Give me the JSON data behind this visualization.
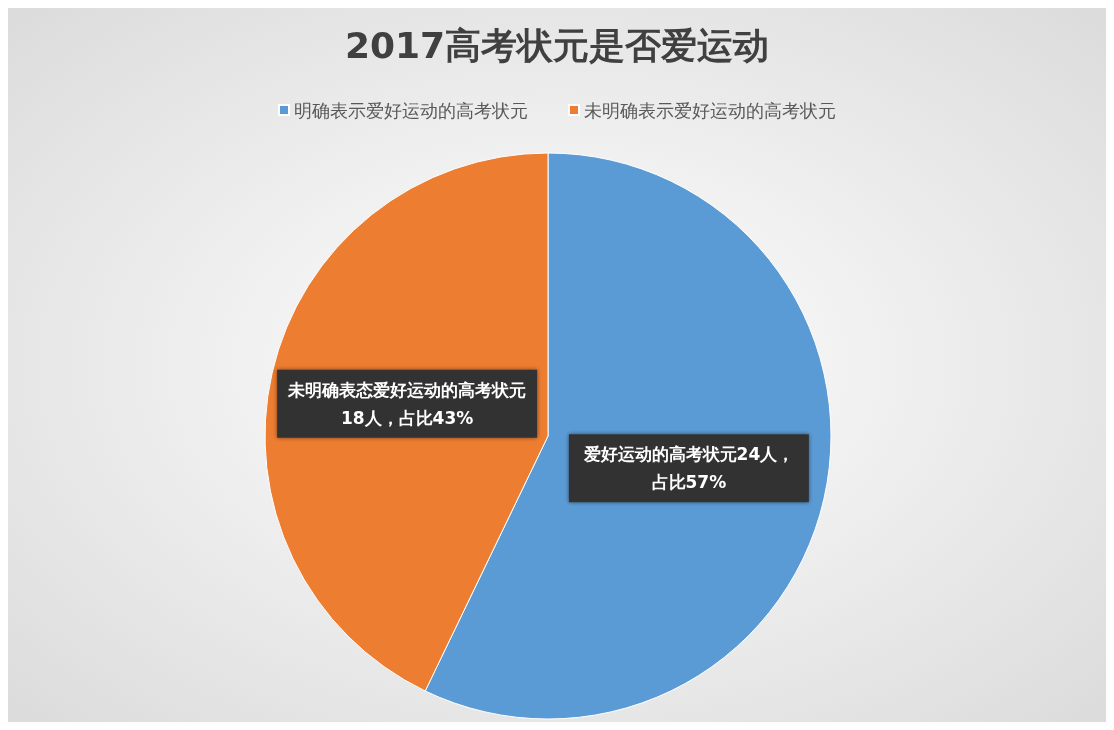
{
  "chart_data": {
    "type": "pie",
    "title": "2017高考状元是否爱运动",
    "categories": [
      "明确表示爱好运动的高考状元",
      "未明确表示爱好运动的高考状元"
    ],
    "values": [
      24,
      18
    ],
    "colors": [
      "#5b9bd5",
      "#ed7d31"
    ],
    "value_labels": [
      "爱好运动的高考状元24人，占比57%",
      "未明确表态爱好运动的高考状元18人，占比43%"
    ],
    "legend": "top"
  }
}
